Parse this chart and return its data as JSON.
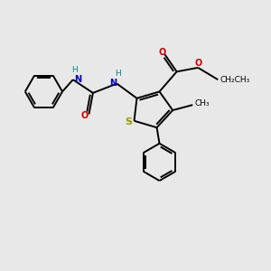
{
  "bg_color": "#e8e8e8",
  "atom_colors": {
    "C": "#000000",
    "N": "#0000bb",
    "O": "#cc0000",
    "S": "#999900",
    "H": "#008888"
  },
  "bond_color": "#000000",
  "lw": 1.4,
  "fs": 7.0
}
